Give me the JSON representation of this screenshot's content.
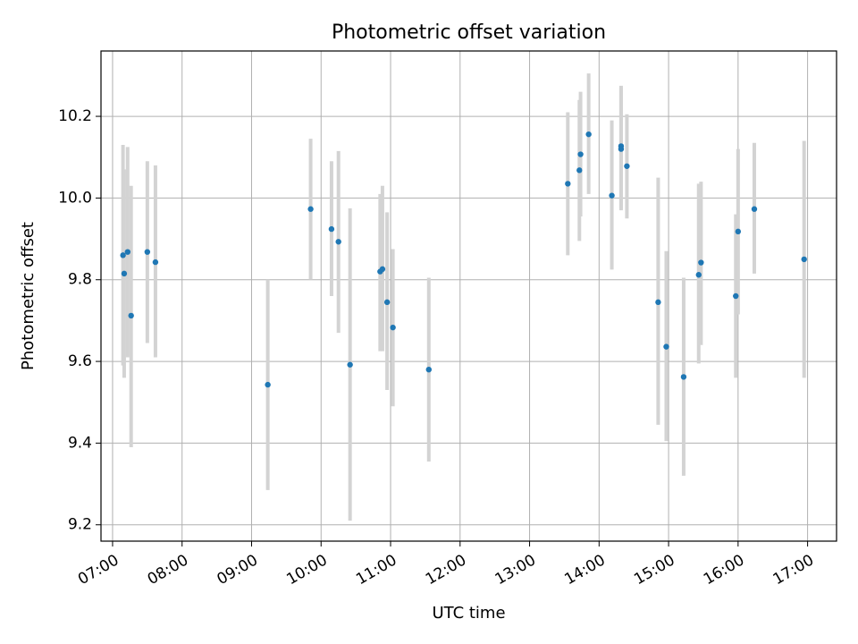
{
  "chart_data": {
    "type": "scatter",
    "title": "Photometric offset variation",
    "xlabel": "UTC time",
    "ylabel": "Photometric offset",
    "grid": true,
    "xlim": [
      "06:50",
      "17:25"
    ],
    "ylim": [
      9.16,
      10.36
    ],
    "x_ticks": [
      "07:00",
      "08:00",
      "09:00",
      "10:00",
      "11:00",
      "12:00",
      "13:00",
      "14:00",
      "15:00",
      "16:00",
      "17:00"
    ],
    "y_ticks": [
      "9.2",
      "9.4",
      "9.6",
      "9.8",
      "10.0",
      "10.2"
    ],
    "colors": {
      "point": "#1f77b4",
      "errorbar": "#d3d3d3",
      "grid": "#b0b0b0"
    },
    "points": [
      {
        "x": "07:09",
        "y": 9.86,
        "ylow": 9.59,
        "yhigh": 10.13
      },
      {
        "x": "07:10",
        "y": 9.815,
        "ylow": 9.56,
        "yhigh": 10.07
      },
      {
        "x": "07:13",
        "y": 9.868,
        "ylow": 9.61,
        "yhigh": 10.125
      },
      {
        "x": "07:16",
        "y": 9.712,
        "ylow": 9.39,
        "yhigh": 10.03
      },
      {
        "x": "07:30",
        "y": 9.868,
        "ylow": 9.645,
        "yhigh": 10.09
      },
      {
        "x": "07:37",
        "y": 9.843,
        "ylow": 9.61,
        "yhigh": 10.08
      },
      {
        "x": "09:14",
        "y": 9.543,
        "ylow": 9.285,
        "yhigh": 9.8
      },
      {
        "x": "09:51",
        "y": 9.973,
        "ylow": 9.8,
        "yhigh": 10.145
      },
      {
        "x": "10:09",
        "y": 9.924,
        "ylow": 9.76,
        "yhigh": 10.09
      },
      {
        "x": "10:15",
        "y": 9.893,
        "ylow": 9.67,
        "yhigh": 10.115
      },
      {
        "x": "10:25",
        "y": 9.592,
        "ylow": 9.21,
        "yhigh": 9.975
      },
      {
        "x": "10:51",
        "y": 9.82,
        "ylow": 9.625,
        "yhigh": 10.01
      },
      {
        "x": "10:53",
        "y": 9.826,
        "ylow": 9.625,
        "yhigh": 10.03
      },
      {
        "x": "10:57",
        "y": 9.745,
        "ylow": 9.53,
        "yhigh": 9.965
      },
      {
        "x": "11:02",
        "y": 9.683,
        "ylow": 9.49,
        "yhigh": 9.875
      },
      {
        "x": "11:33",
        "y": 9.58,
        "ylow": 9.355,
        "yhigh": 9.805
      },
      {
        "x": "13:33",
        "y": 10.035,
        "ylow": 9.86,
        "yhigh": 10.21
      },
      {
        "x": "13:43",
        "y": 10.068,
        "ylow": 9.895,
        "yhigh": 10.24
      },
      {
        "x": "13:44",
        "y": 10.107,
        "ylow": 9.955,
        "yhigh": 10.26
      },
      {
        "x": "13:51",
        "y": 10.156,
        "ylow": 10.01,
        "yhigh": 10.305
      },
      {
        "x": "14:11",
        "y": 10.006,
        "ylow": 9.825,
        "yhigh": 10.19
      },
      {
        "x": "14:19",
        "y": 10.127,
        "ylow": 9.975,
        "yhigh": 10.275
      },
      {
        "x": "14:19",
        "y": 10.12,
        "ylow": 9.97,
        "yhigh": 10.27
      },
      {
        "x": "14:24",
        "y": 10.078,
        "ylow": 9.95,
        "yhigh": 10.205
      },
      {
        "x": "14:51",
        "y": 9.745,
        "ylow": 9.445,
        "yhigh": 10.05
      },
      {
        "x": "14:58",
        "y": 9.636,
        "ylow": 9.405,
        "yhigh": 9.87
      },
      {
        "x": "15:13",
        "y": 9.562,
        "ylow": 9.32,
        "yhigh": 9.805
      },
      {
        "x": "15:26",
        "y": 9.812,
        "ylow": 9.595,
        "yhigh": 10.035
      },
      {
        "x": "15:28",
        "y": 9.842,
        "ylow": 9.64,
        "yhigh": 10.04
      },
      {
        "x": "15:58",
        "y": 9.76,
        "ylow": 9.56,
        "yhigh": 9.96
      },
      {
        "x": "16:00",
        "y": 9.918,
        "ylow": 9.715,
        "yhigh": 10.12
      },
      {
        "x": "16:14",
        "y": 9.973,
        "ylow": 9.815,
        "yhigh": 10.135
      },
      {
        "x": "16:57",
        "y": 9.85,
        "ylow": 9.56,
        "yhigh": 10.14
      }
    ]
  }
}
